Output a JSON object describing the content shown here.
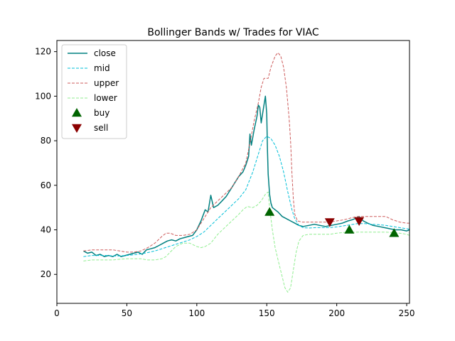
{
  "chart_data": {
    "type": "line",
    "title": "Bollinger Bands w/ Trades for VIAC",
    "xlabel": "",
    "ylabel": "",
    "xlim": [
      0,
      252
    ],
    "ylim": [
      7,
      125
    ],
    "xticks": [
      0,
      50,
      100,
      150,
      200,
      250
    ],
    "yticks": [
      20,
      40,
      60,
      80,
      100,
      120
    ],
    "grid": false,
    "legend_position": "top-left",
    "colors": {
      "close": "#008080",
      "mid": "#00bfd8",
      "upper": "#cd5c5c",
      "lower": "#90ee90",
      "buy": "#006400",
      "sell": "#8b0000"
    },
    "series": [
      {
        "name": "close",
        "style": "solid",
        "points": [
          [
            19,
            30.5
          ],
          [
            22,
            29.5
          ],
          [
            25,
            30
          ],
          [
            28,
            28.5
          ],
          [
            31,
            29
          ],
          [
            34,
            28
          ],
          [
            37,
            28.5
          ],
          [
            40,
            28
          ],
          [
            43,
            29
          ],
          [
            46,
            28
          ],
          [
            49,
            28.5
          ],
          [
            52,
            29
          ],
          [
            55,
            29.5
          ],
          [
            58,
            30
          ],
          [
            61,
            29
          ],
          [
            64,
            31
          ],
          [
            67,
            31.5
          ],
          [
            70,
            32
          ],
          [
            73,
            33
          ],
          [
            76,
            34
          ],
          [
            79,
            35
          ],
          [
            82,
            35.5
          ],
          [
            85,
            35
          ],
          [
            88,
            36
          ],
          [
            91,
            36.5
          ],
          [
            94,
            37
          ],
          [
            97,
            37.5
          ],
          [
            100,
            40
          ],
          [
            103,
            44
          ],
          [
            106,
            49
          ],
          [
            108,
            48
          ],
          [
            110,
            55.5
          ],
          [
            112,
            50
          ],
          [
            115,
            51
          ],
          [
            118,
            53
          ],
          [
            121,
            55
          ],
          [
            124,
            58
          ],
          [
            127,
            61
          ],
          [
            130,
            64
          ],
          [
            133,
            66
          ],
          [
            135,
            69
          ],
          [
            137,
            73
          ],
          [
            138,
            83
          ],
          [
            139,
            78
          ],
          [
            141,
            85
          ],
          [
            143,
            91
          ],
          [
            144,
            96
          ],
          [
            145,
            95
          ],
          [
            146,
            88
          ],
          [
            147,
            92
          ],
          [
            148,
            96
          ],
          [
            149,
            100
          ],
          [
            150,
            92
          ],
          [
            150.5,
            76
          ],
          [
            151,
            65
          ],
          [
            152,
            56
          ],
          [
            153,
            52
          ],
          [
            154,
            50
          ],
          [
            156,
            49
          ],
          [
            158,
            48
          ],
          [
            161,
            46
          ],
          [
            164,
            45
          ],
          [
            167,
            44
          ],
          [
            170,
            43
          ],
          [
            173,
            42
          ],
          [
            176,
            41.5
          ],
          [
            180,
            42
          ],
          [
            184,
            42.5
          ],
          [
            188,
            42
          ],
          [
            192,
            41.5
          ],
          [
            196,
            42
          ],
          [
            200,
            42.5
          ],
          [
            204,
            43
          ],
          [
            208,
            44
          ],
          [
            211,
            44.5
          ],
          [
            213,
            45
          ],
          [
            216,
            46
          ],
          [
            219,
            44
          ],
          [
            222,
            43
          ],
          [
            226,
            42
          ],
          [
            230,
            41.5
          ],
          [
            234,
            41
          ],
          [
            238,
            40.5
          ],
          [
            242,
            40
          ],
          [
            246,
            40
          ],
          [
            250,
            39.5
          ],
          [
            252,
            40
          ]
        ]
      },
      {
        "name": "mid",
        "style": "dashed",
        "points": [
          [
            19,
            28
          ],
          [
            25,
            28.5
          ],
          [
            30,
            28.5
          ],
          [
            35,
            28.5
          ],
          [
            40,
            28.3
          ],
          [
            45,
            28.3
          ],
          [
            50,
            28.5
          ],
          [
            55,
            28.8
          ],
          [
            60,
            29.2
          ],
          [
            65,
            29.8
          ],
          [
            70,
            30.5
          ],
          [
            75,
            31.5
          ],
          [
            80,
            32.5
          ],
          [
            85,
            33.5
          ],
          [
            90,
            34.5
          ],
          [
            95,
            35.5
          ],
          [
            100,
            37
          ],
          [
            105,
            39
          ],
          [
            110,
            42
          ],
          [
            115,
            45
          ],
          [
            120,
            48
          ],
          [
            125,
            51
          ],
          [
            130,
            54
          ],
          [
            135,
            58
          ],
          [
            140,
            66
          ],
          [
            144,
            74
          ],
          [
            147,
            80
          ],
          [
            150,
            82
          ],
          [
            153,
            81
          ],
          [
            156,
            78
          ],
          [
            159,
            73
          ],
          [
            162,
            66
          ],
          [
            165,
            57
          ],
          [
            168,
            49
          ],
          [
            170,
            45
          ],
          [
            173,
            42
          ],
          [
            176,
            41
          ],
          [
            180,
            40.8
          ],
          [
            185,
            41
          ],
          [
            190,
            41
          ],
          [
            195,
            41
          ],
          [
            200,
            41.3
          ],
          [
            205,
            41.8
          ],
          [
            210,
            42.3
          ],
          [
            215,
            42.8
          ],
          [
            220,
            42.8
          ],
          [
            225,
            42.5
          ],
          [
            230,
            42.3
          ],
          [
            235,
            42
          ],
          [
            240,
            41.5
          ],
          [
            245,
            41
          ],
          [
            250,
            40.5
          ],
          [
            252,
            40.3
          ]
        ]
      },
      {
        "name": "upper",
        "style": "dashed",
        "points": [
          [
            19,
            30.5
          ],
          [
            25,
            31
          ],
          [
            30,
            31
          ],
          [
            35,
            31
          ],
          [
            40,
            31
          ],
          [
            45,
            30.5
          ],
          [
            50,
            30
          ],
          [
            55,
            30
          ],
          [
            60,
            30.5
          ],
          [
            65,
            32
          ],
          [
            70,
            34
          ],
          [
            75,
            37
          ],
          [
            78,
            38.5
          ],
          [
            81,
            38.5
          ],
          [
            85,
            37.5
          ],
          [
            90,
            37.5
          ],
          [
            95,
            38
          ],
          [
            100,
            40
          ],
          [
            105,
            45
          ],
          [
            110,
            50
          ],
          [
            115,
            53
          ],
          [
            120,
            56
          ],
          [
            125,
            59
          ],
          [
            130,
            64
          ],
          [
            135,
            70
          ],
          [
            138,
            79
          ],
          [
            141,
            89
          ],
          [
            144,
            97
          ],
          [
            146,
            104
          ],
          [
            148,
            108
          ],
          [
            151,
            108
          ],
          [
            153,
            113
          ],
          [
            156,
            118
          ],
          [
            158,
            119.5
          ],
          [
            160,
            118
          ],
          [
            162,
            113
          ],
          [
            164,
            104
          ],
          [
            166,
            90
          ],
          [
            167,
            80
          ],
          [
            168,
            65
          ],
          [
            169,
            54
          ],
          [
            170,
            47
          ],
          [
            172,
            44
          ],
          [
            175,
            43.5
          ],
          [
            180,
            43.5
          ],
          [
            185,
            43.5
          ],
          [
            190,
            43.5
          ],
          [
            195,
            43.5
          ],
          [
            200,
            44
          ],
          [
            205,
            44.5
          ],
          [
            210,
            45.3
          ],
          [
            215,
            46
          ],
          [
            220,
            46
          ],
          [
            225,
            46
          ],
          [
            230,
            46
          ],
          [
            235,
            46
          ],
          [
            240,
            44.5
          ],
          [
            245,
            43.5
          ],
          [
            250,
            43
          ],
          [
            252,
            43
          ]
        ]
      },
      {
        "name": "lower",
        "style": "dashed",
        "points": [
          [
            19,
            26
          ],
          [
            25,
            26.5
          ],
          [
            30,
            26.5
          ],
          [
            35,
            26.5
          ],
          [
            40,
            26.5
          ],
          [
            45,
            26.8
          ],
          [
            50,
            27
          ],
          [
            55,
            27
          ],
          [
            60,
            27
          ],
          [
            65,
            26.5
          ],
          [
            70,
            26.5
          ],
          [
            75,
            27
          ],
          [
            78,
            28
          ],
          [
            81,
            30
          ],
          [
            85,
            32.5
          ],
          [
            90,
            34
          ],
          [
            95,
            34
          ],
          [
            100,
            32.5
          ],
          [
            103,
            32
          ],
          [
            106,
            32.5
          ],
          [
            110,
            34
          ],
          [
            115,
            38
          ],
          [
            120,
            41
          ],
          [
            125,
            44
          ],
          [
            130,
            47
          ],
          [
            133,
            49
          ],
          [
            136,
            50.5
          ],
          [
            140,
            50
          ],
          [
            143,
            51
          ],
          [
            146,
            53
          ],
          [
            149,
            56
          ],
          [
            151,
            57
          ],
          [
            152,
            50
          ],
          [
            154,
            40
          ],
          [
            156,
            32
          ],
          [
            159,
            24
          ],
          [
            161,
            19
          ],
          [
            163,
            14
          ],
          [
            165,
            12
          ],
          [
            167,
            14
          ],
          [
            169,
            22
          ],
          [
            171,
            30
          ],
          [
            173,
            35
          ],
          [
            176,
            37.5
          ],
          [
            180,
            38
          ],
          [
            185,
            38
          ],
          [
            190,
            38
          ],
          [
            195,
            38
          ],
          [
            200,
            38.5
          ],
          [
            205,
            38.8
          ],
          [
            210,
            38.8
          ],
          [
            215,
            39
          ],
          [
            220,
            39
          ],
          [
            225,
            39
          ],
          [
            230,
            39
          ],
          [
            235,
            39
          ],
          [
            240,
            38.8
          ],
          [
            245,
            38.5
          ],
          [
            250,
            38
          ],
          [
            252,
            37.5
          ]
        ]
      }
    ],
    "buy": [
      [
        152,
        48
      ],
      [
        209,
        40
      ],
      [
        241,
        38.5
      ]
    ],
    "sell": [
      [
        195,
        43.5
      ],
      [
        216,
        44
      ]
    ],
    "legend": [
      {
        "label": "close",
        "kind": "line",
        "style": "solid",
        "color": "#008080"
      },
      {
        "label": "mid",
        "kind": "line",
        "style": "dashed",
        "color": "#00bfd8"
      },
      {
        "label": "upper",
        "kind": "line",
        "style": "dashed",
        "color": "#cd5c5c"
      },
      {
        "label": "lower",
        "kind": "line",
        "style": "dashed",
        "color": "#90ee90"
      },
      {
        "label": "buy",
        "kind": "marker-up",
        "color": "#006400"
      },
      {
        "label": "sell",
        "kind": "marker-down",
        "color": "#8b0000"
      }
    ]
  }
}
